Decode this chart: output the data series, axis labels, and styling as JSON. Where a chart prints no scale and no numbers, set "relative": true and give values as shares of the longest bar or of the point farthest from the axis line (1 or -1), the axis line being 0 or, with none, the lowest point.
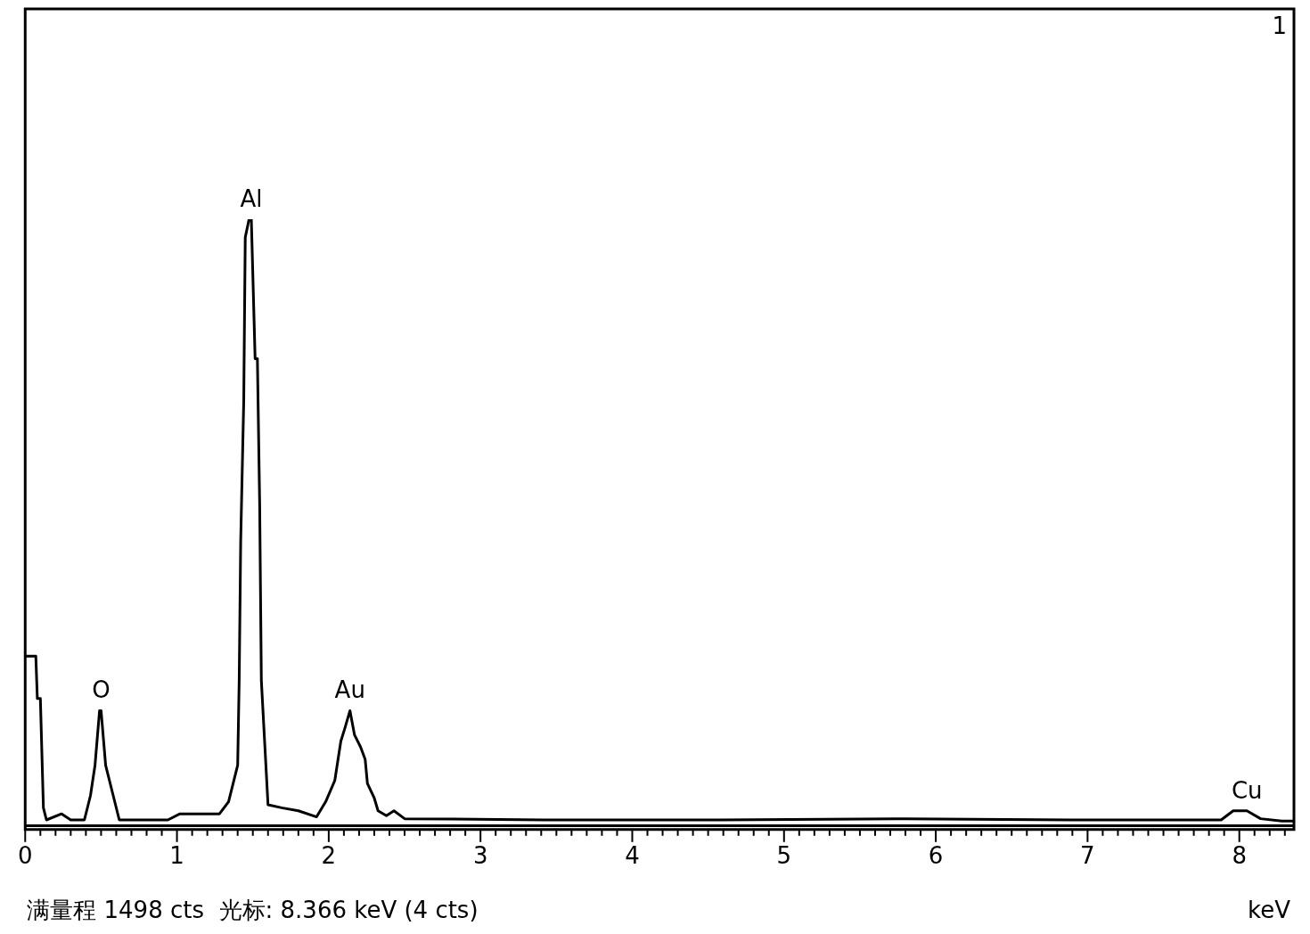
{
  "chart_data": {
    "type": "line",
    "relative": true,
    "xlabel": "keV",
    "marker": "none",
    "line_style": "solid",
    "legend": false,
    "tick_labels": "x",
    "xlim": [
      0,
      8.36
    ],
    "xticks": [
      0,
      {
        "value": 0.1,
        "label": null
      },
      {
        "value": 0.2,
        "label": null
      },
      {
        "value": 0.3,
        "label": null
      },
      {
        "value": 0.4,
        "label": null
      },
      {
        "value": 0.5,
        "label": null
      },
      {
        "value": 0.6,
        "label": null
      },
      {
        "value": 0.7,
        "label": null
      },
      {
        "value": 0.8,
        "label": null
      },
      {
        "value": 0.9,
        "label": null
      },
      1,
      {
        "value": 1.1,
        "label": null
      },
      {
        "value": 1.2,
        "label": null
      },
      {
        "value": 1.3,
        "label": null
      },
      {
        "value": 1.4,
        "label": null
      },
      {
        "value": 1.5,
        "label": null
      },
      {
        "value": 1.6,
        "label": null
      },
      {
        "value": 1.7,
        "label": null
      },
      {
        "value": 1.8,
        "label": null
      },
      {
        "value": 1.9,
        "label": null
      },
      2,
      {
        "value": 2.1,
        "label": null
      },
      {
        "value": 2.2,
        "label": null
      },
      {
        "value": 2.3,
        "label": null
      },
      {
        "value": 2.4,
        "label": null
      },
      {
        "value": 2.5,
        "label": null
      },
      {
        "value": 2.6,
        "label": null
      },
      {
        "value": 2.7,
        "label": null
      },
      {
        "value": 2.8,
        "label": null
      },
      {
        "value": 2.9,
        "label": null
      },
      3,
      {
        "value": 3.1,
        "label": null
      },
      {
        "value": 3.2,
        "label": null
      },
      {
        "value": 3.3,
        "label": null
      },
      {
        "value": 3.4,
        "label": null
      },
      {
        "value": 3.5,
        "label": null
      },
      {
        "value": 3.6,
        "label": null
      },
      {
        "value": 3.7,
        "label": null
      },
      {
        "value": 3.8,
        "label": null
      },
      {
        "value": 3.9,
        "label": null
      },
      4,
      {
        "value": 4.1,
        "label": null
      },
      {
        "value": 4.2,
        "label": null
      },
      {
        "value": 4.3,
        "label": null
      },
      {
        "value": 4.4,
        "label": null
      },
      {
        "value": 4.5,
        "label": null
      },
      {
        "value": 4.6,
        "label": null
      },
      {
        "value": 4.7,
        "label": null
      },
      {
        "value": 4.8,
        "label": null
      },
      {
        "value": 4.9,
        "label": null
      },
      5,
      {
        "value": 5.1,
        "label": null
      },
      {
        "value": 5.2,
        "label": null
      },
      {
        "value": 5.3,
        "label": null
      },
      {
        "value": 5.4,
        "label": null
      },
      {
        "value": 5.5,
        "label": null
      },
      {
        "value": 5.6,
        "label": null
      },
      {
        "value": 5.7,
        "label": null
      },
      {
        "value": 5.8,
        "label": null
      },
      {
        "value": 5.9,
        "label": null
      },
      6,
      {
        "value": 6.1,
        "label": null
      },
      {
        "value": 6.2,
        "label": null
      },
      {
        "value": 6.3,
        "label": null
      },
      {
        "value": 6.4,
        "label": null
      },
      {
        "value": 6.5,
        "label": null
      },
      {
        "value": 6.6,
        "label": null
      },
      {
        "value": 6.7,
        "label": null
      },
      {
        "value": 6.8,
        "label": null
      },
      {
        "value": 6.9,
        "label": null
      },
      7,
      {
        "value": 7.1,
        "label": null
      },
      {
        "value": 7.2,
        "label": null
      },
      {
        "value": 7.3,
        "label": null
      },
      {
        "value": 7.4,
        "label": null
      },
      {
        "value": 7.5,
        "label": null
      },
      {
        "value": 7.6,
        "label": null
      },
      {
        "value": 7.7,
        "label": null
      },
      {
        "value": 7.8,
        "label": null
      },
      {
        "value": 7.9,
        "label": null
      },
      8,
      {
        "value": 8.1,
        "label": null
      },
      {
        "value": 8.2,
        "label": null
      },
      {
        "value": 8.3,
        "label": null
      }
    ],
    "x": [
      0,
      0.07,
      0.08,
      0.1,
      0.12,
      0.14,
      0.24,
      0.3,
      0.39,
      0.43,
      0.46,
      0.49,
      0.5,
      0.53,
      0.58,
      0.62,
      0.94,
      1.02,
      1.28,
      1.34,
      1.4,
      1.41,
      1.42,
      1.44,
      1.45,
      1.475,
      1.49,
      1.515,
      1.53,
      1.545,
      1.556,
      1.6,
      1.69,
      1.8,
      1.92,
      1.98,
      2.04,
      2.08,
      2.105,
      2.14,
      2.17,
      2.21,
      2.24,
      2.255,
      2.3,
      2.325,
      2.38,
      2.43,
      2.5,
      3.42,
      4.58,
      5.74,
      6.89,
      7.88,
      7.96,
      8.05,
      8.14,
      8.28,
      8.36
    ],
    "series": [
      {
        "color": "#000000",
        "values": [
          0.28,
          0.28,
          0.21,
          0.21,
          0.03,
          0.01,
          0.02,
          0.01,
          0.01,
          0.05,
          0.1,
          0.19,
          0.19,
          0.1,
          0.05,
          0.01,
          0.01,
          0.02,
          0.02,
          0.04,
          0.1,
          0.24,
          0.47,
          0.7,
          0.97,
          1,
          1,
          0.77,
          0.77,
          0.53,
          0.24,
          0.035,
          0.03,
          0.025,
          0.015,
          0.04,
          0.075,
          0.14,
          0.16,
          0.19,
          0.15,
          0.13,
          0.11,
          0.07,
          0.046,
          0.025,
          0.017,
          0.025,
          0.012,
          0.01,
          0.01,
          0.012,
          0.01,
          0.01,
          0.025,
          0.025,
          0.012,
          0.008,
          0.008
        ]
      }
    ],
    "annotations": [
      "1",
      "满量程 1498 cts  光标: 8.366 keV (4 cts)",
      {
        "text": "O",
        "x": 0.5,
        "y": 0.19
      },
      {
        "text": "Al",
        "x": 1.49,
        "y": 1
      },
      {
        "text": "Au",
        "x": 2.14,
        "y": 0.19
      },
      {
        "text": "Cu",
        "x": 8.05,
        "y": 0.025
      }
    ]
  }
}
